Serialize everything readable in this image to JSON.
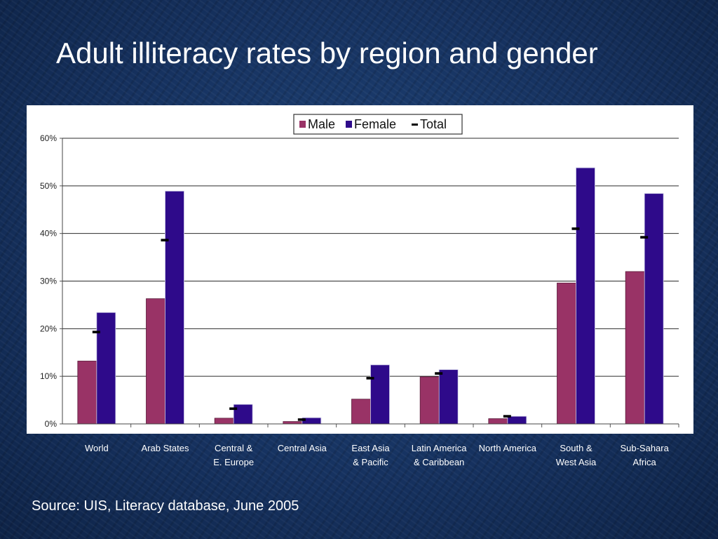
{
  "title": "Adult illiteracy rates by region and gender",
  "source": "Source: UIS, Literacy database, June 2005",
  "chart_data": {
    "type": "bar",
    "categories": [
      [
        "World",
        ""
      ],
      [
        "Arab States",
        ""
      ],
      [
        "Central &",
        "E. Europe"
      ],
      [
        "Central Asia",
        ""
      ],
      [
        "East Asia",
        "&  Pacific"
      ],
      [
        "Latin America",
        "& Caribbean"
      ],
      [
        "North America",
        ""
      ],
      [
        "South &",
        "West Asia"
      ],
      [
        "Sub-Sahara",
        "Africa"
      ]
    ],
    "series": [
      {
        "name": "Male",
        "type": "bar",
        "color": "#993366",
        "values": [
          13.2,
          26.3,
          1.2,
          0.5,
          5.2,
          9.9,
          1.1,
          29.6,
          32.0
        ]
      },
      {
        "name": "Female",
        "type": "bar",
        "color": "#2e0a8a",
        "values": [
          23.4,
          48.9,
          4.1,
          1.3,
          12.4,
          11.4,
          1.6,
          53.8,
          48.4
        ]
      },
      {
        "name": "Total",
        "type": "marker",
        "color": "#000000",
        "values": [
          19.3,
          38.6,
          3.2,
          0.9,
          9.6,
          10.6,
          1.6,
          41.0,
          39.2
        ]
      }
    ],
    "yticks": [
      "0%",
      "10%",
      "20%",
      "30%",
      "40%",
      "50%",
      "60%"
    ],
    "ylim": [
      0,
      60
    ],
    "grid": true,
    "legend": "top-center"
  }
}
